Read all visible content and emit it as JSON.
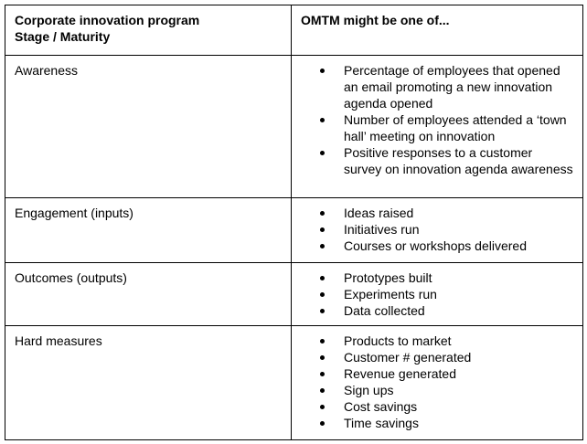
{
  "table": {
    "header": [
      [
        "Corporate innovation program",
        "Stage / Maturity"
      ],
      "OMTM might be one of..."
    ],
    "rows": [
      {
        "stage": "Awareness",
        "items": [
          "Percentage of employees that opened an email promoting a new innovation agenda opened",
          "Number of employees attended a ‘town hall’ meeting on innovation",
          "Positive responses to a customer survey on innovation agenda awareness"
        ]
      },
      {
        "stage": "Engagement (inputs)",
        "items": [
          "Ideas raised",
          "Initiatives run",
          "Courses or workshops delivered"
        ]
      },
      {
        "stage": "Outcomes (outputs)",
        "items": [
          "Prototypes built",
          "Experiments run",
          "Data collected"
        ]
      },
      {
        "stage": "Hard measures",
        "items": [
          "Products to market",
          "Customer # generated",
          "Revenue generated",
          "Sign ups",
          "Cost savings",
          "Time savings"
        ]
      }
    ]
  }
}
